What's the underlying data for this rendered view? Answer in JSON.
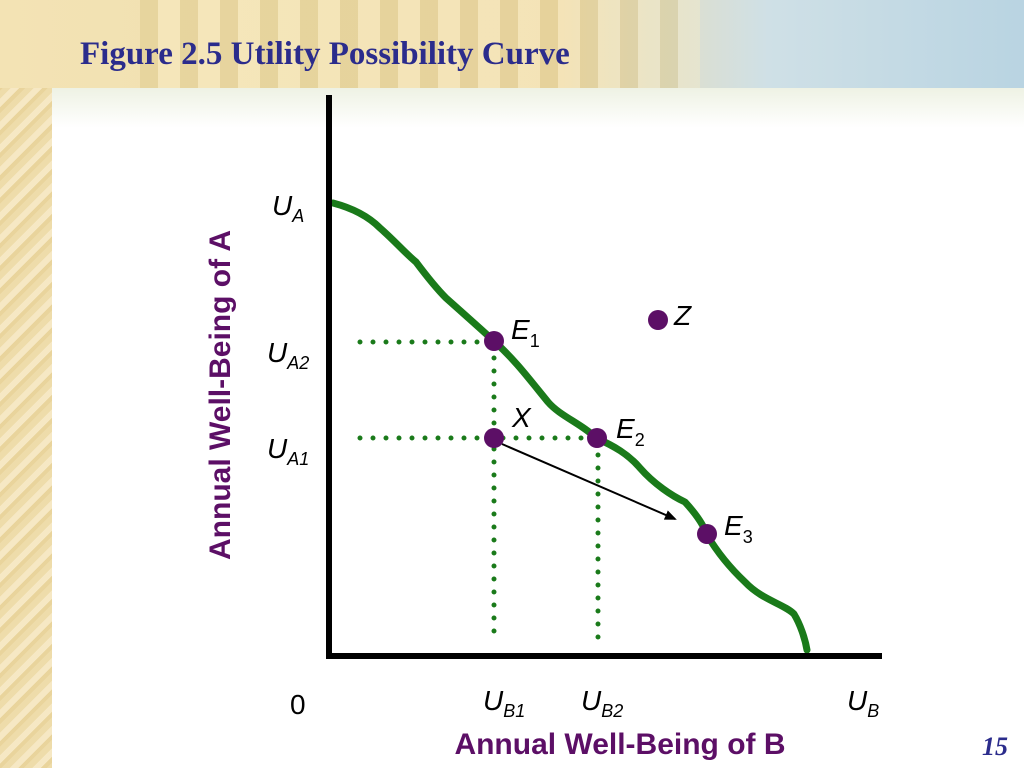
{
  "slide": {
    "title": "Figure 2.5 Utility Possibility Curve",
    "page_number": "15"
  },
  "colors": {
    "title": "#2b2c8c",
    "axis_title": "#5c0f66",
    "curve": "#1a7a1a",
    "points": "#5c0f66",
    "guide_lines": "#1a7a1a"
  },
  "diagram": {
    "y_axis_title": "Annual Well-Being of A",
    "x_axis_title": "Annual Well-Being of B",
    "origin_label": "0",
    "y_labels": {
      "ua": {
        "main": "U",
        "sub": "A"
      },
      "ua2": {
        "main": "U",
        "sub": "A2"
      },
      "ua1": {
        "main": "U",
        "sub": "A1"
      }
    },
    "x_labels": {
      "ub1": {
        "main": "U",
        "sub": "B1"
      },
      "ub2": {
        "main": "U",
        "sub": "B2"
      },
      "ub": {
        "main": "U",
        "sub": "B"
      }
    },
    "points": {
      "e1": {
        "main": "E",
        "sub": "1"
      },
      "e2": {
        "main": "E",
        "sub": "2"
      },
      "e3": {
        "main": "E",
        "sub": "3"
      },
      "x": {
        "main": "X"
      },
      "z": {
        "main": "Z"
      }
    }
  }
}
